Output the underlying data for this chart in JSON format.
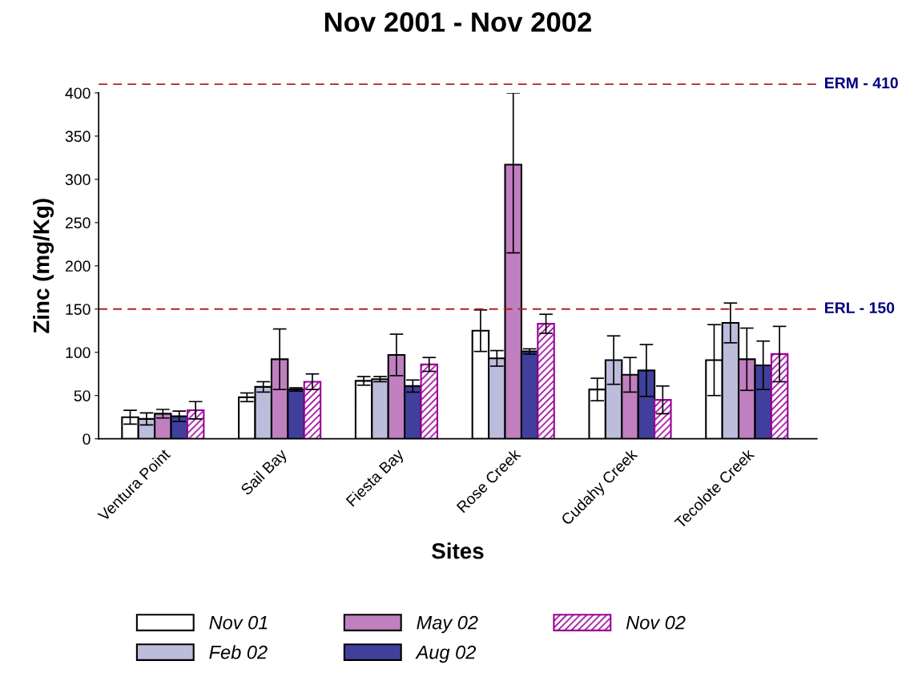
{
  "chart_data": {
    "type": "bar",
    "title": "Nov 2001 - Nov 2002",
    "xlabel": "Sites",
    "ylabel": "Zinc (mg/Kg)",
    "categories": [
      "Ventura Point",
      "Sail Bay",
      "Fiesta Bay",
      "Rose Creek",
      "Cudahy Creek",
      "Tecolote Creek"
    ],
    "series": [
      {
        "name": "Nov 01",
        "color": "#ffffff",
        "values": [
          25,
          48,
          67,
          125,
          57,
          91
        ],
        "errors": [
          8,
          5,
          5,
          24,
          13,
          41
        ]
      },
      {
        "name": "Feb 02",
        "color": "#bcbcdc",
        "values": [
          23,
          60,
          69,
          93,
          91,
          134
        ],
        "errors": [
          7,
          6,
          3,
          9,
          28,
          23
        ]
      },
      {
        "name": "May 02",
        "color": "#c080c0",
        "values": [
          29,
          92,
          97,
          317,
          74,
          92
        ],
        "errors": [
          5,
          35,
          24,
          [
            215,
            400
          ],
          20,
          36
        ]
      },
      {
        "name": "Aug 02",
        "color": "#40409c",
        "values": [
          26,
          57,
          61,
          101,
          79,
          85
        ],
        "errors": [
          6,
          2,
          7,
          3,
          30,
          28
        ]
      },
      {
        "name": "Nov 02",
        "color": "#990099",
        "values": [
          33,
          66,
          86,
          133,
          45,
          98
        ],
        "errors": [
          10,
          9,
          8,
          11,
          16,
          32
        ]
      }
    ],
    "ylim": [
      0,
      400
    ],
    "yticks": [
      0,
      50,
      100,
      150,
      200,
      250,
      300,
      350,
      400
    ],
    "ref_lines": [
      {
        "axis": "y",
        "value": 410,
        "label": "ERM - 410",
        "color": "#b22222",
        "line_style": "dashed"
      },
      {
        "axis": "y",
        "value": 150,
        "label": "ERL - 150",
        "color": "#b22222",
        "line_style": "dashed"
      }
    ],
    "grid": false,
    "legend": "bottom"
  }
}
